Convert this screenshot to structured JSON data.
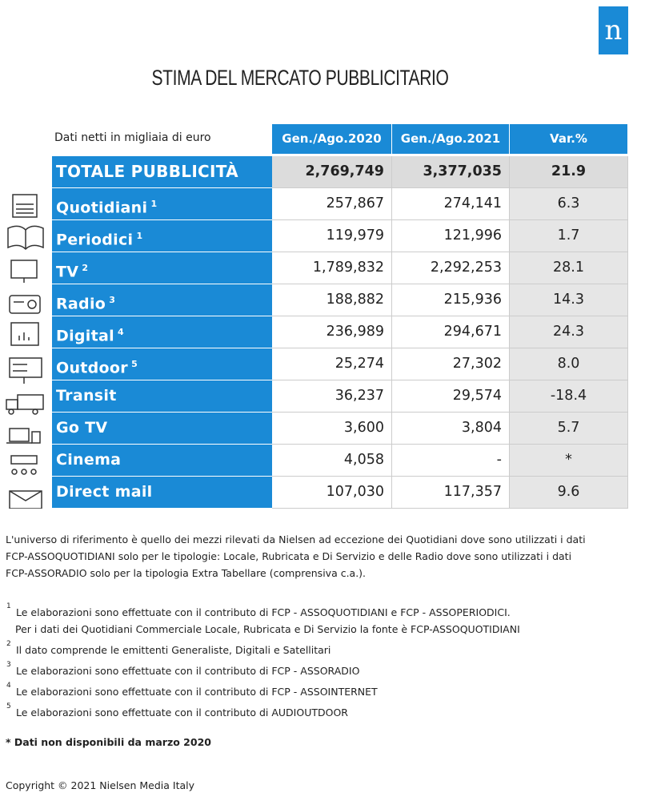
{
  "header": {
    "logo": "n",
    "title": "STIMA DEL MERCATO PUBBLICITARIO"
  },
  "table": {
    "caption": "Dati netti in migliaia di euro",
    "columns": [
      "Gen./Ago.2020",
      "Gen./Ago.2021",
      "Var.%"
    ],
    "total": {
      "label": "TOTALE PUBBLICITÀ",
      "values": [
        "2,769,749",
        "3,377,035",
        "21.9"
      ]
    },
    "rows": [
      {
        "label": "Quotidiani",
        "note": "1",
        "values": [
          "257,867",
          "274,141",
          "6.3"
        ]
      },
      {
        "label": "Periodici",
        "note": "1",
        "values": [
          "119,979",
          "121,996",
          "1.7"
        ]
      },
      {
        "label": "TV",
        "note": "2",
        "values": [
          "1,789,832",
          "2,292,253",
          "28.1"
        ]
      },
      {
        "label": "Radio",
        "note": "3",
        "values": [
          "188,882",
          "215,936",
          "14.3"
        ]
      },
      {
        "label": "Digital",
        "note": "4",
        "values": [
          "236,989",
          "294,671",
          "24.3"
        ]
      },
      {
        "label": "Outdoor",
        "note": "5",
        "values": [
          "25,274",
          "27,302",
          "8.0"
        ]
      },
      {
        "label": "Transit",
        "values": [
          "36,237",
          "29,574",
          "-18.4"
        ]
      },
      {
        "label": "Go TV",
        "values": [
          "3,600",
          "3,804",
          "5.7"
        ]
      },
      {
        "label": "Cinema",
        "values": [
          "4,058",
          "-",
          "*"
        ]
      },
      {
        "label": "Direct mail",
        "values": [
          "107,030",
          "117,357",
          "9.6"
        ]
      }
    ]
  },
  "intro": [
    "L'universo di riferimento è quello dei mezzi rilevati da Nielsen ad eccezione dei Quotidiani dove sono utilizzati i dati",
    "FCP-ASSOQUOTIDIANI solo per le tipologie: Locale, Rubricata e Di Servizio e delle Radio dove sono utilizzati i dati",
    "FCP-ASSORADIO solo per la tipologia Extra Tabellare (comprensiva c.a.)."
  ],
  "footnotes": [
    {
      "marker": "1",
      "lines": [
        "Le elaborazioni sono effettuate con il contributo di FCP - ASSOQUOTIDIANI e FCP - ASSOPERIODICI.",
        "Per i dati dei Quotidiani Commerciale Locale, Rubricata e Di Servizio la fonte è  FCP-ASSOQUOTIDIANI"
      ]
    },
    {
      "marker": "2",
      "lines": [
        "Il dato comprende le emittenti Generaliste, Digitali e Satellitari"
      ]
    },
    {
      "marker": "3",
      "lines": [
        "Le elaborazioni sono effettuate con il contributo di FCP - ASSORADIO"
      ]
    },
    {
      "marker": "4",
      "lines": [
        "Le elaborazioni sono effettuate con il contributo di FCP - ASSOINTERNET"
      ]
    },
    {
      "marker": "5",
      "lines": [
        "Le elaborazioni sono effettuate con il contributo di AUDIOUTDOOR"
      ]
    }
  ],
  "unavailable": "* Dati non disponibili da marzo 2020",
  "copyright": "Copyright © 2021 Nielsen Media Italy"
}
